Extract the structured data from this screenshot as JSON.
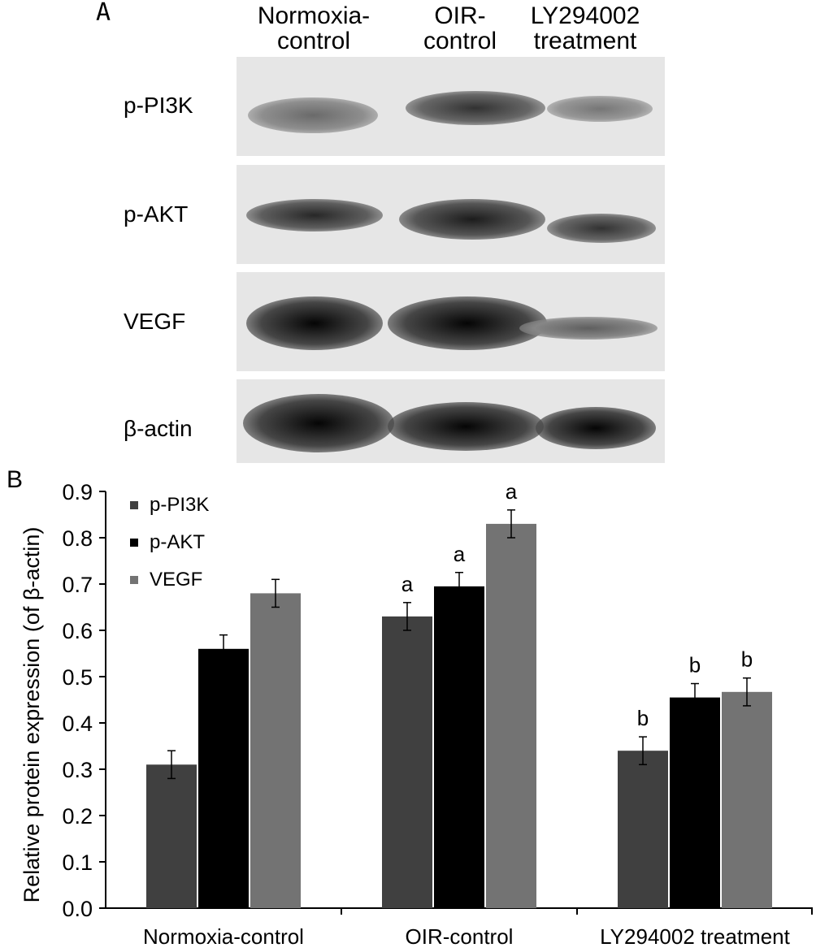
{
  "panel_a": {
    "letter": "A",
    "lanes": [
      {
        "line1": "Normoxia-",
        "line2": "control"
      },
      {
        "line1": "OIR-",
        "line2": "control"
      },
      {
        "line1": "LY294002",
        "line2": "treatment"
      }
    ],
    "blots": [
      {
        "label": "p-PI3K",
        "intensity": [
          0.55,
          0.8,
          0.5
        ]
      },
      {
        "label": "p-AKT",
        "intensity": [
          0.85,
          0.9,
          0.8
        ]
      },
      {
        "label": "VEGF",
        "intensity": [
          1.0,
          1.0,
          0.6
        ]
      },
      {
        "label": "β-actin",
        "intensity": [
          1.0,
          1.0,
          1.0
        ]
      }
    ]
  },
  "panel_b": {
    "letter": "B"
  },
  "chart_data": {
    "type": "bar",
    "categories": [
      "Normoxia-control",
      "OIR-control",
      "LY294002 treatment"
    ],
    "series": [
      {
        "name": "p-PI3K",
        "color": "#404040",
        "values": [
          0.31,
          0.63,
          0.34
        ],
        "errors": [
          0.03,
          0.03,
          0.03
        ],
        "annotations": [
          "",
          "a",
          "b"
        ]
      },
      {
        "name": "p-AKT",
        "color": "#000000",
        "values": [
          0.56,
          0.695,
          0.455
        ],
        "errors": [
          0.03,
          0.03,
          0.03
        ],
        "annotations": [
          "",
          "a",
          "b"
        ]
      },
      {
        "name": "VEGF",
        "color": "#737373",
        "values": [
          0.68,
          0.83,
          0.467
        ],
        "errors": [
          0.03,
          0.03,
          0.03
        ],
        "annotations": [
          "",
          "a",
          "b"
        ]
      }
    ],
    "ylabel": "Relative protein expression (of β-actin)",
    "ylim": [
      0,
      0.9
    ],
    "yticks": [
      "0.0",
      "0.1",
      "0.2",
      "0.3",
      "0.4",
      "0.5",
      "0.6",
      "0.7",
      "0.8",
      "0.9"
    ],
    "legend_position": "top-left",
    "grid": false
  }
}
